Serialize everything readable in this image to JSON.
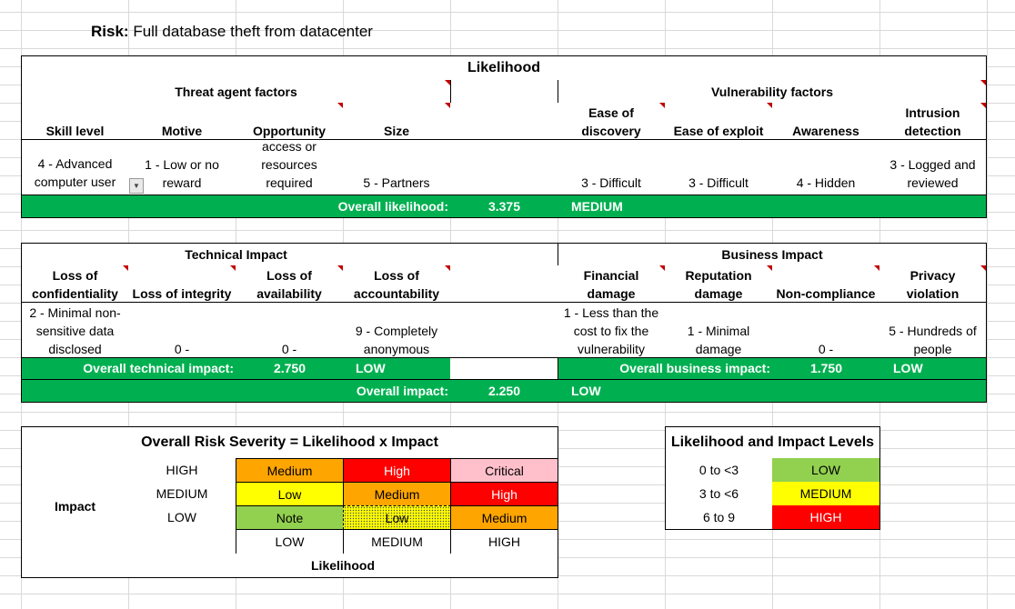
{
  "risk": {
    "label": "Risk:",
    "text": "Full database theft from datacenter"
  },
  "likelihood": {
    "title": "Likelihood",
    "threat_title": "Threat agent factors",
    "vuln_title": "Vulnerability factors",
    "headers": {
      "skill": "Skill level",
      "motive": "Motive",
      "opportunity": "Opportunity",
      "size": "Size",
      "discovery_1": "Ease of",
      "discovery_2": "discovery",
      "exploit": "Ease of exploit",
      "awareness": "Awareness",
      "intrusion_1": "Intrusion",
      "intrusion_2": "detection"
    },
    "values": {
      "skill_1": "4 - Advanced",
      "skill_2": "computer user",
      "motive_1": "1 - Low or no",
      "motive_2": "reward",
      "opp_1": "access or",
      "opp_2": "resources",
      "opp_3": "required",
      "size": "5 - Partners",
      "discovery": "3 - Difficult",
      "exploit": "3 - Difficult",
      "awareness": "4 - Hidden",
      "intrusion_1": "3 - Logged and",
      "intrusion_2": "reviewed"
    },
    "overall_label": "Overall likelihood:",
    "overall_value": "3.375",
    "overall_level": "MEDIUM"
  },
  "impact": {
    "tech_title": "Technical Impact",
    "biz_title": "Business Impact",
    "headers": {
      "conf_1": "Loss of",
      "conf_2": "confidentiality",
      "integrity": "Loss of integrity",
      "avail_1": "Loss of",
      "avail_2": "availability",
      "acct_1": "Loss of",
      "acct_2": "accountability",
      "fin_1": "Financial",
      "fin_2": "damage",
      "rep_1": "Reputation",
      "rep_2": "damage",
      "noncomp": "Non-compliance",
      "priv_1": "Privacy",
      "priv_2": "violation"
    },
    "values": {
      "conf_1": "2 - Minimal non-",
      "conf_2": "sensitive data",
      "conf_3": "disclosed",
      "integrity": "0 -",
      "avail": "0 -",
      "acct_1": "9 - Completely",
      "acct_2": "anonymous",
      "fin_1": "1 - Less than the",
      "fin_2": "cost to fix the",
      "fin_3": "vulnerability",
      "rep_1": "1 - Minimal",
      "rep_2": "damage",
      "noncomp": "0 -",
      "priv_1": "5 - Hundreds of",
      "priv_2": "people"
    },
    "tech_label": "Overall technical impact:",
    "tech_value": "2.750",
    "tech_level": "LOW",
    "biz_label": "Overall business impact:",
    "biz_value": "1.750",
    "biz_level": "LOW",
    "overall_label": "Overall impact:",
    "overall_value": "2.250",
    "overall_level": "LOW"
  },
  "severity": {
    "title": "Overall Risk Severity = Likelihood x Impact",
    "impact_label": "Impact",
    "likelihood_label": "Likelihood",
    "row_labels": [
      "HIGH",
      "MEDIUM",
      "LOW"
    ],
    "col_labels": [
      "LOW",
      "MEDIUM",
      "HIGH"
    ],
    "rows": [
      [
        "Medium",
        "High",
        "Critical"
      ],
      [
        "Low",
        "Medium",
        "High"
      ],
      [
        "Note",
        "Low",
        "Medium"
      ]
    ],
    "colors": {
      "Note": "#92d050",
      "Low": "#ffff00",
      "Medium": "#ffa500",
      "High": "#ff0000",
      "Critical": "#ffc0cb"
    },
    "selected": {
      "impact": "LOW",
      "likelihood": "MEDIUM"
    }
  },
  "levels": {
    "title": "Likelihood and Impact Levels",
    "rows": [
      {
        "range": "0 to <3",
        "level": "LOW",
        "color": "#92d050",
        "text_color": "#000000"
      },
      {
        "range": "3 to <6",
        "level": "MEDIUM",
        "color": "#ffff00",
        "text_color": "#000000"
      },
      {
        "range": "6 to 9",
        "level": "HIGH",
        "color": "#ff0000",
        "text_color": "#ffffff"
      }
    ]
  }
}
